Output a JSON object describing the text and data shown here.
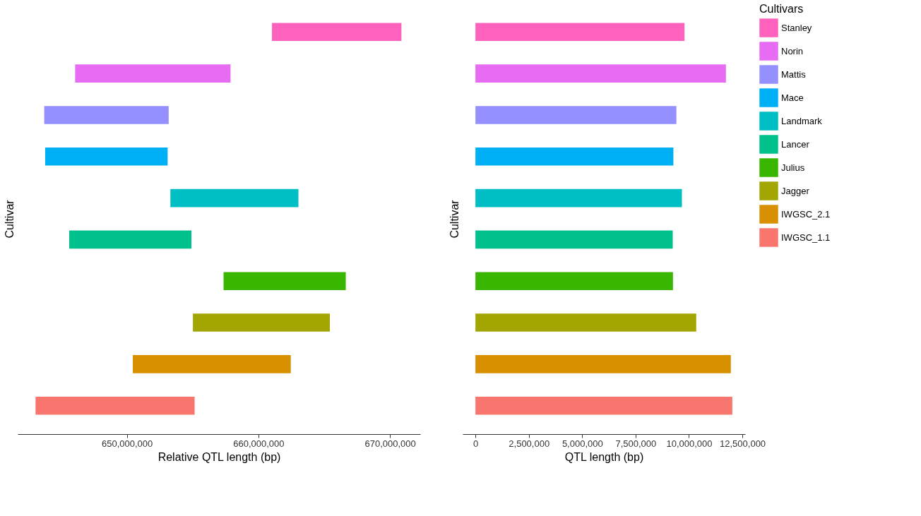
{
  "chart_data": [
    {
      "type": "bar",
      "orientation": "horizontal",
      "xlabel": "Relative QTL length (bp)",
      "ylabel": "Cultivar",
      "categories": [
        null,
        null,
        null,
        null,
        null,
        null,
        null,
        null,
        null,
        null
      ],
      "base": [
        661030000,
        646070000,
        643720000,
        643790000,
        653310000,
        645620000,
        657350000,
        655020000,
        650450000,
        643060000
      ],
      "values": [
        9840000,
        11810000,
        9460000,
        9310000,
        9730000,
        9290000,
        9290000,
        10410000,
        12010000,
        12090000
      ],
      "colors": [
        "#ff62bc",
        "#e76bf3",
        "#9590ff",
        "#00b0f6",
        "#00bfc4",
        "#00c08b",
        "#39b600",
        "#a3a500",
        "#d89000",
        "#f8766d"
      ],
      "xlim": [
        641700000,
        672300000
      ],
      "xticks": [
        {
          "value": 650000000,
          "label": "650,000,000"
        },
        {
          "value": 660000000,
          "label": "660,000,000"
        },
        {
          "value": 670000000,
          "label": "670,000,000"
        }
      ],
      "tick_labels": "x",
      "grid": false,
      "legend": false
    },
    {
      "type": "bar",
      "orientation": "horizontal",
      "xlabel": "QTL length (bp)",
      "ylabel": "Cultivar",
      "legend_title": "Cultivars",
      "categories": [
        null,
        null,
        null,
        null,
        null,
        null,
        null,
        null,
        null,
        null
      ],
      "series": [
        {
          "name": "Stanley",
          "color": "#ff62bc",
          "values": [
            9790000,
            null,
            null,
            null,
            null,
            null,
            null,
            null,
            null,
            null
          ]
        },
        {
          "name": "Norin",
          "color": "#e76bf3",
          "values": [
            null,
            11730000,
            null,
            null,
            null,
            null,
            null,
            null,
            null,
            null
          ]
        },
        {
          "name": "Mattis",
          "color": "#9590ff",
          "values": [
            null,
            null,
            9410000,
            null,
            null,
            null,
            null,
            null,
            null,
            null
          ]
        },
        {
          "name": "Mace",
          "color": "#00b0f6",
          "values": [
            null,
            null,
            null,
            9270000,
            null,
            null,
            null,
            null,
            null,
            null
          ]
        },
        {
          "name": "Landmark",
          "color": "#00bfc4",
          "values": [
            null,
            null,
            null,
            null,
            9670000,
            null,
            null,
            null,
            null,
            null
          ]
        },
        {
          "name": "Lancer",
          "color": "#00c08b",
          "values": [
            null,
            null,
            null,
            null,
            null,
            9240000,
            null,
            null,
            null,
            null
          ]
        },
        {
          "name": "Julius",
          "color": "#39b600",
          "values": [
            null,
            null,
            null,
            null,
            null,
            null,
            9250000,
            null,
            null,
            null
          ]
        },
        {
          "name": "Jagger",
          "color": "#a3a500",
          "values": [
            null,
            null,
            null,
            null,
            null,
            null,
            null,
            10340000,
            null,
            null
          ]
        },
        {
          "name": "IWGSC_2.1",
          "color": "#d89000",
          "values": [
            null,
            null,
            null,
            null,
            null,
            null,
            null,
            null,
            11960000,
            null
          ]
        },
        {
          "name": "IWGSC_1.1",
          "color": "#f8766d",
          "values": [
            null,
            null,
            null,
            null,
            null,
            null,
            null,
            null,
            null,
            12030000
          ]
        }
      ],
      "xlim": [
        -600000,
        12630000
      ],
      "xticks": [
        0,
        {
          "value": 2500000,
          "label": "2,500,000"
        },
        {
          "value": 5000000,
          "label": "5,000,000"
        },
        {
          "value": 7500000,
          "label": "7,500,000"
        },
        {
          "value": 10000000,
          "label": "10,000,000"
        },
        {
          "value": 12500000,
          "label": "12,500,000"
        }
      ],
      "tick_labels": "x",
      "grid": false,
      "legend": "right"
    }
  ]
}
